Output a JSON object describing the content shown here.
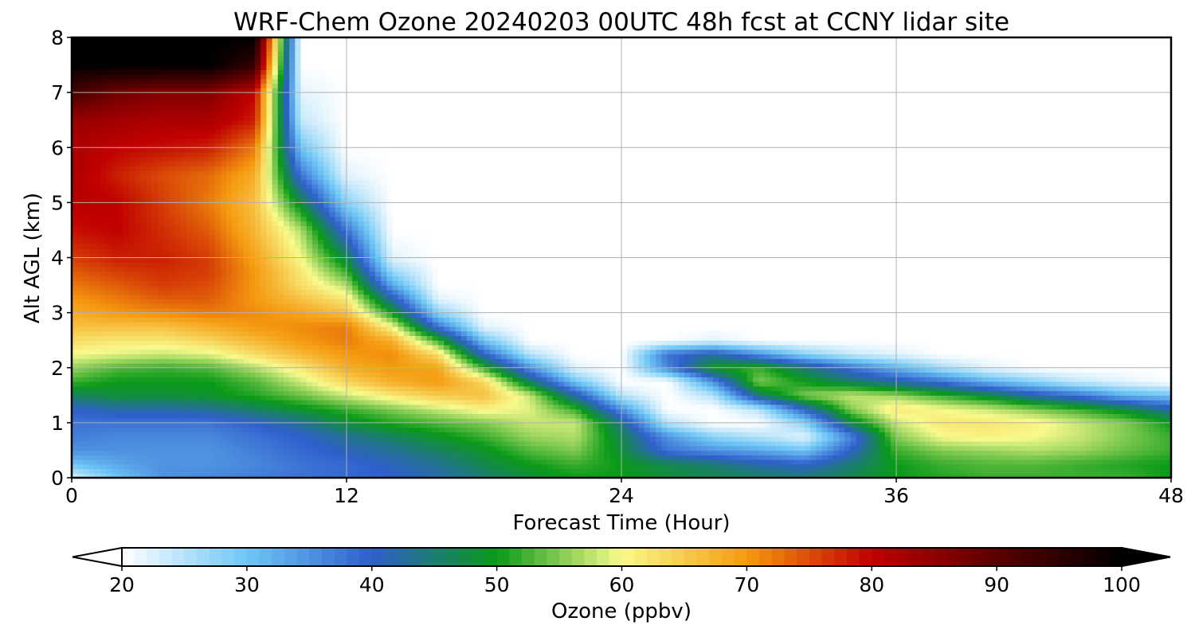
{
  "chart_data": {
    "type": "heatmap",
    "title": "WRF-Chem Ozone  20240203 00UTC 48h fcst at CCNY lidar site",
    "xlabel": "Forecast Time (Hour)",
    "ylabel": "Alt AGL (km)",
    "xlim": [
      0,
      48
    ],
    "ylim": [
      0,
      8
    ],
    "xticks": [
      0,
      12,
      24,
      36,
      48
    ],
    "yticks": [
      0,
      1,
      2,
      3,
      4,
      5,
      6,
      7,
      8
    ],
    "grid": true,
    "colorbar": {
      "label": "Ozone  (ppbv)",
      "min": 20,
      "max": 100,
      "ticks": [
        20,
        30,
        40,
        50,
        60,
        70,
        80,
        90,
        100
      ],
      "extend": "both",
      "orientation": "horizontal",
      "color_stops": [
        {
          "value": 20,
          "color": "#ffffff"
        },
        {
          "value": 30,
          "color": "#6ec6f5"
        },
        {
          "value": 40,
          "color": "#2f5fcc"
        },
        {
          "value": 50,
          "color": "#0a9a18"
        },
        {
          "value": 60,
          "color": "#f8fa8c"
        },
        {
          "value": 70,
          "color": "#f59a10"
        },
        {
          "value": 80,
          "color": "#c00000"
        },
        {
          "value": 90,
          "color": "#5a0000"
        },
        {
          "value": 100,
          "color": "#000000"
        }
      ]
    },
    "x": [
      0,
      2,
      4,
      6,
      8,
      10,
      12,
      14,
      16,
      18,
      20,
      22,
      24,
      26,
      28,
      30,
      32,
      34,
      36,
      38,
      40,
      42,
      44,
      46,
      48
    ],
    "y": [
      0,
      0.25,
      0.5,
      0.75,
      1,
      1.25,
      1.5,
      1.75,
      2,
      2.25,
      2.5,
      2.75,
      3,
      3.25,
      3.5,
      3.75,
      4,
      4.5,
      5,
      5.5,
      6,
      6.5,
      7,
      7.5,
      8
    ],
    "z": [
      [
        22,
        30,
        35,
        36,
        37,
        38,
        39,
        40,
        42,
        45,
        48,
        50,
        50,
        48,
        47,
        46,
        45,
        47,
        50,
        51,
        52,
        52,
        52,
        52,
        50
      ],
      [
        30,
        33,
        35,
        35,
        36,
        38,
        39,
        41,
        43,
        47,
        50,
        52,
        50,
        47,
        45,
        42,
        40,
        45,
        50,
        52,
        53,
        53,
        52,
        51,
        50
      ],
      [
        35,
        35,
        35,
        35,
        37,
        39,
        41,
        43,
        46,
        49,
        53,
        55,
        48,
        38,
        35,
        33,
        30,
        40,
        52,
        55,
        56,
        57,
        56,
        54,
        52
      ],
      [
        37,
        36,
        36,
        36,
        38,
        40,
        43,
        46,
        49,
        52,
        56,
        57,
        47,
        35,
        28,
        25,
        22,
        36,
        55,
        60,
        61,
        60,
        58,
        55,
        52
      ],
      [
        38,
        38,
        38,
        38,
        40,
        43,
        48,
        51,
        53,
        55,
        58,
        58,
        44,
        25,
        20,
        20,
        28,
        47,
        58,
        62,
        62,
        61,
        58,
        55,
        50
      ],
      [
        40,
        42,
        42,
        43,
        46,
        49,
        52,
        55,
        58,
        61,
        59,
        52,
        35,
        20,
        20,
        25,
        40,
        55,
        62,
        60,
        58,
        55,
        52,
        48,
        42
      ],
      [
        46,
        48,
        48,
        49,
        51,
        54,
        58,
        62,
        65,
        66,
        58,
        42,
        25,
        20,
        25,
        45,
        55,
        58,
        56,
        52,
        48,
        42,
        38,
        32,
        30
      ],
      [
        52,
        50,
        50,
        50,
        53,
        58,
        64,
        68,
        70,
        64,
        46,
        30,
        20,
        20,
        35,
        55,
        50,
        46,
        42,
        38,
        32,
        28,
        24,
        22,
        20
      ],
      [
        56,
        53,
        52,
        53,
        57,
        62,
        68,
        70,
        69,
        52,
        35,
        22,
        20,
        36,
        50,
        52,
        45,
        38,
        32,
        26,
        22,
        20,
        20,
        20,
        20
      ],
      [
        60,
        59,
        58,
        59,
        63,
        67,
        70,
        71,
        63,
        40,
        25,
        20,
        20,
        38,
        42,
        35,
        28,
        24,
        22,
        20,
        20,
        20,
        20,
        20,
        20
      ],
      [
        63,
        62,
        62,
        64,
        67,
        70,
        72,
        68,
        52,
        30,
        20,
        20,
        20,
        20,
        22,
        20,
        20,
        20,
        20,
        20,
        20,
        20,
        20,
        20,
        20
      ],
      [
        66,
        66,
        66,
        68,
        70,
        71,
        72,
        60,
        38,
        22,
        20,
        20,
        20,
        20,
        20,
        20,
        20,
        20,
        20,
        20,
        20,
        20,
        20,
        20,
        20
      ],
      [
        68,
        70,
        71,
        72,
        71,
        69,
        66,
        50,
        28,
        20,
        20,
        20,
        20,
        20,
        20,
        20,
        20,
        20,
        20,
        20,
        20,
        20,
        20,
        20,
        20
      ],
      [
        70,
        72,
        74,
        74,
        70,
        66,
        62,
        42,
        22,
        20,
        20,
        20,
        20,
        20,
        20,
        20,
        20,
        20,
        20,
        20,
        20,
        20,
        20,
        20,
        20
      ],
      [
        72,
        74,
        76,
        75,
        70,
        63,
        57,
        33,
        20,
        20,
        20,
        20,
        20,
        20,
        20,
        20,
        20,
        20,
        20,
        20,
        20,
        20,
        20,
        20,
        20
      ],
      [
        74,
        76,
        77,
        76,
        70,
        62,
        52,
        27,
        20,
        20,
        20,
        20,
        20,
        20,
        20,
        20,
        20,
        20,
        20,
        20,
        20,
        20,
        20,
        20,
        20
      ],
      [
        76,
        78,
        78,
        76,
        69,
        60,
        47,
        22,
        20,
        20,
        20,
        20,
        20,
        20,
        20,
        20,
        20,
        20,
        20,
        20,
        20,
        20,
        20,
        20,
        20
      ],
      [
        79,
        80,
        77,
        74,
        67,
        57,
        38,
        20,
        20,
        20,
        20,
        20,
        20,
        20,
        20,
        20,
        20,
        20,
        20,
        20,
        20,
        20,
        20,
        20,
        20
      ],
      [
        81,
        80,
        76,
        72,
        66,
        48,
        28,
        20,
        20,
        20,
        20,
        20,
        20,
        20,
        20,
        20,
        20,
        20,
        20,
        20,
        20,
        20,
        20,
        20,
        20
      ],
      [
        82,
        78,
        75,
        73,
        68,
        38,
        22,
        20,
        20,
        20,
        20,
        20,
        20,
        20,
        20,
        20,
        20,
        20,
        20,
        20,
        20,
        20,
        20,
        20,
        20
      ],
      [
        82,
        80,
        79,
        78,
        72,
        30,
        20,
        20,
        20,
        20,
        20,
        20,
        20,
        20,
        20,
        20,
        20,
        20,
        20,
        20,
        20,
        20,
        20,
        20,
        20
      ],
      [
        84,
        83,
        82,
        82,
        78,
        24,
        20,
        20,
        20,
        20,
        20,
        20,
        20,
        20,
        20,
        20,
        20,
        20,
        20,
        20,
        20,
        20,
        20,
        20,
        20
      ],
      [
        92,
        88,
        86,
        86,
        80,
        22,
        20,
        20,
        20,
        20,
        20,
        20,
        20,
        20,
        20,
        20,
        20,
        20,
        20,
        20,
        20,
        20,
        20,
        20,
        20
      ],
      [
        100,
        100,
        100,
        100,
        94,
        20,
        20,
        20,
        20,
        20,
        20,
        20,
        20,
        20,
        20,
        20,
        20,
        20,
        20,
        20,
        20,
        20,
        20,
        20,
        20
      ],
      [
        100,
        100,
        100,
        100,
        100,
        20,
        20,
        20,
        20,
        20,
        20,
        20,
        20,
        20,
        20,
        20,
        20,
        20,
        20,
        20,
        20,
        20,
        20,
        20,
        20
      ]
    ]
  }
}
